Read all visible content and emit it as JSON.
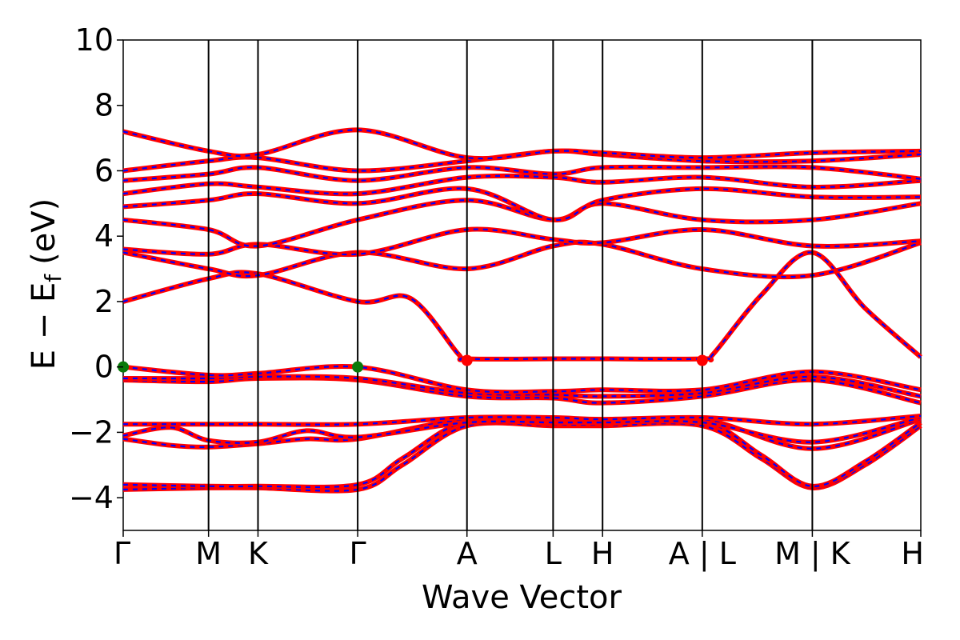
{
  "chart_data": {
    "type": "line",
    "xlabel": "Wave Vector",
    "ylabel": "E − E",
    "ylabel_subscript": "f",
    "ylabel_unit": "(eV)",
    "ylim": [
      -5,
      10
    ],
    "y_ticks": [
      "−4",
      "−2",
      "0",
      "2",
      "4",
      "6",
      "8",
      "10"
    ],
    "y_tick_values": [
      -4,
      -2,
      0,
      2,
      4,
      6,
      8,
      10
    ],
    "k_points": [
      {
        "label": "Γ",
        "x": 0.0
      },
      {
        "label": "M",
        "x": 0.107
      },
      {
        "label": "K",
        "x": 0.169
      },
      {
        "label": "Γ",
        "x": 0.294
      },
      {
        "label": "A",
        "x": 0.431
      },
      {
        "label": "L",
        "x": 0.539
      },
      {
        "label": "H",
        "x": 0.601
      },
      {
        "label": "A | L",
        "x": 0.726
      },
      {
        "label": "M | K",
        "x": 0.864
      },
      {
        "label": "H",
        "x": 1.0
      }
    ],
    "xlim": [
      0,
      1
    ],
    "grid": false,
    "line_colors": {
      "primary": "#ff0000",
      "secondary": "#0000ff"
    },
    "marker_colors": {
      "green": "#0a7a0a",
      "red": "#ff0000"
    },
    "markers": [
      {
        "x": 0.0,
        "y": 0.0,
        "color": "green"
      },
      {
        "x": 0.294,
        "y": 0.0,
        "color": "green"
      },
      {
        "x": 0.431,
        "y": 0.2,
        "color": "red"
      },
      {
        "x": 0.726,
        "y": 0.2,
        "color": "red"
      }
    ],
    "series": [
      {
        "x": [
          0,
          0.107,
          0.169,
          0.294,
          0.35,
          0.431,
          0.539,
          0.601,
          0.726,
          0.8,
          0.864,
          0.93,
          1.0
        ],
        "y": [
          -3.75,
          -3.7,
          -3.7,
          -3.75,
          -3.0,
          -1.8,
          -1.8,
          -1.8,
          -1.8,
          -2.8,
          -3.7,
          -3.0,
          -1.8
        ]
      },
      {
        "x": [
          0,
          0.107,
          0.169,
          0.294,
          0.35,
          0.431,
          0.539,
          0.601,
          0.726,
          0.8,
          0.864,
          0.93,
          1.0
        ],
        "y": [
          -3.6,
          -3.65,
          -3.65,
          -3.6,
          -2.8,
          -1.65,
          -1.65,
          -1.65,
          -1.65,
          -2.7,
          -3.65,
          -2.9,
          -1.7
        ]
      },
      {
        "x": [
          0,
          0.06,
          0.107,
          0.169,
          0.23,
          0.294,
          0.431,
          0.539,
          0.601,
          0.726,
          0.864,
          1.0
        ],
        "y": [
          -2.2,
          -2.4,
          -2.45,
          -2.35,
          -2.2,
          -2.2,
          -1.6,
          -1.75,
          -1.75,
          -1.6,
          -2.5,
          -1.6
        ]
      },
      {
        "x": [
          0,
          0.06,
          0.107,
          0.169,
          0.23,
          0.294,
          0.431,
          0.539,
          0.601,
          0.726,
          0.864,
          1.0
        ],
        "y": [
          -2.1,
          -1.85,
          -2.25,
          -2.3,
          -1.95,
          -2.15,
          -1.7,
          -1.7,
          -1.7,
          -1.7,
          -2.3,
          -1.55
        ]
      },
      {
        "x": [
          0,
          0.107,
          0.169,
          0.294,
          0.431,
          0.539,
          0.601,
          0.726,
          0.864,
          1.0
        ],
        "y": [
          -1.75,
          -1.75,
          -1.75,
          -1.75,
          -1.55,
          -1.55,
          -1.6,
          -1.55,
          -1.75,
          -1.5
        ]
      },
      {
        "x": [
          0,
          0.107,
          0.169,
          0.294,
          0.431,
          0.539,
          0.601,
          0.726,
          0.864,
          1.0
        ],
        "y": [
          -0.4,
          -0.45,
          -0.35,
          -0.4,
          -0.9,
          -0.95,
          -1.1,
          -0.9,
          -0.4,
          -1.1
        ]
      },
      {
        "x": [
          0,
          0.107,
          0.169,
          0.294,
          0.431,
          0.539,
          0.601,
          0.726,
          0.864,
          1.0
        ],
        "y": [
          -0.35,
          -0.35,
          -0.3,
          -0.35,
          -0.8,
          -0.85,
          -0.9,
          -0.8,
          -0.3,
          -0.9
        ]
      },
      {
        "x": [
          0,
          0.107,
          0.169,
          0.294,
          0.431,
          0.539,
          0.601,
          0.726,
          0.864,
          1.0
        ],
        "y": [
          0.0,
          -0.25,
          -0.2,
          0.0,
          -0.7,
          -0.75,
          -0.7,
          -0.7,
          -0.15,
          -0.7
        ]
      },
      {
        "x": [
          0,
          0.107,
          0.169,
          0.294,
          0.36,
          0.42,
          0.431,
          0.539,
          0.601,
          0.726,
          0.74,
          0.8,
          0.864,
          0.93,
          1.0
        ],
        "y": [
          2.0,
          2.7,
          2.85,
          2.0,
          2.1,
          0.4,
          0.25,
          0.25,
          0.25,
          0.25,
          0.4,
          2.2,
          3.5,
          1.8,
          0.3
        ]
      },
      {
        "x": [
          0,
          0.107,
          0.169,
          0.294,
          0.431,
          0.539,
          0.601,
          0.726,
          0.864,
          1.0
        ],
        "y": [
          3.5,
          3.0,
          2.8,
          3.5,
          3.0,
          3.7,
          3.75,
          3.0,
          2.8,
          3.8
        ]
      },
      {
        "x": [
          0,
          0.107,
          0.169,
          0.294,
          0.431,
          0.539,
          0.601,
          0.726,
          0.864,
          1.0
        ],
        "y": [
          3.6,
          3.45,
          3.75,
          3.45,
          4.2,
          3.9,
          3.8,
          4.2,
          3.7,
          3.85
        ]
      },
      {
        "x": [
          0,
          0.107,
          0.169,
          0.294,
          0.431,
          0.539,
          0.601,
          0.726,
          0.864,
          1.0
        ],
        "y": [
          4.5,
          4.2,
          3.7,
          4.5,
          5.1,
          4.5,
          5.0,
          4.5,
          4.5,
          5.0
        ]
      },
      {
        "x": [
          0,
          0.107,
          0.169,
          0.294,
          0.431,
          0.539,
          0.601,
          0.726,
          0.864,
          1.0
        ],
        "y": [
          4.9,
          5.1,
          5.3,
          5.0,
          5.45,
          4.5,
          5.1,
          5.45,
          5.2,
          5.2
        ]
      },
      {
        "x": [
          0,
          0.107,
          0.169,
          0.294,
          0.431,
          0.539,
          0.601,
          0.726,
          0.864,
          1.0
        ],
        "y": [
          5.3,
          5.6,
          5.5,
          5.3,
          5.8,
          5.8,
          5.65,
          5.8,
          5.5,
          5.7
        ]
      },
      {
        "x": [
          0,
          0.107,
          0.169,
          0.294,
          0.431,
          0.539,
          0.601,
          0.726,
          0.864,
          1.0
        ],
        "y": [
          5.7,
          5.9,
          6.1,
          5.7,
          6.1,
          5.9,
          6.1,
          6.1,
          6.1,
          5.75
        ]
      },
      {
        "x": [
          0,
          0.107,
          0.169,
          0.294,
          0.431,
          0.539,
          0.601,
          0.726,
          0.864,
          1.0
        ],
        "y": [
          6.0,
          6.3,
          6.4,
          6.0,
          6.3,
          6.6,
          6.5,
          6.3,
          6.3,
          6.5
        ]
      },
      {
        "x": [
          0,
          0.107,
          0.169,
          0.294,
          0.431,
          0.539,
          0.601,
          0.726,
          0.864,
          1.0
        ],
        "y": [
          7.2,
          6.6,
          6.5,
          7.25,
          6.4,
          6.6,
          6.55,
          6.4,
          6.55,
          6.6
        ]
      }
    ]
  }
}
